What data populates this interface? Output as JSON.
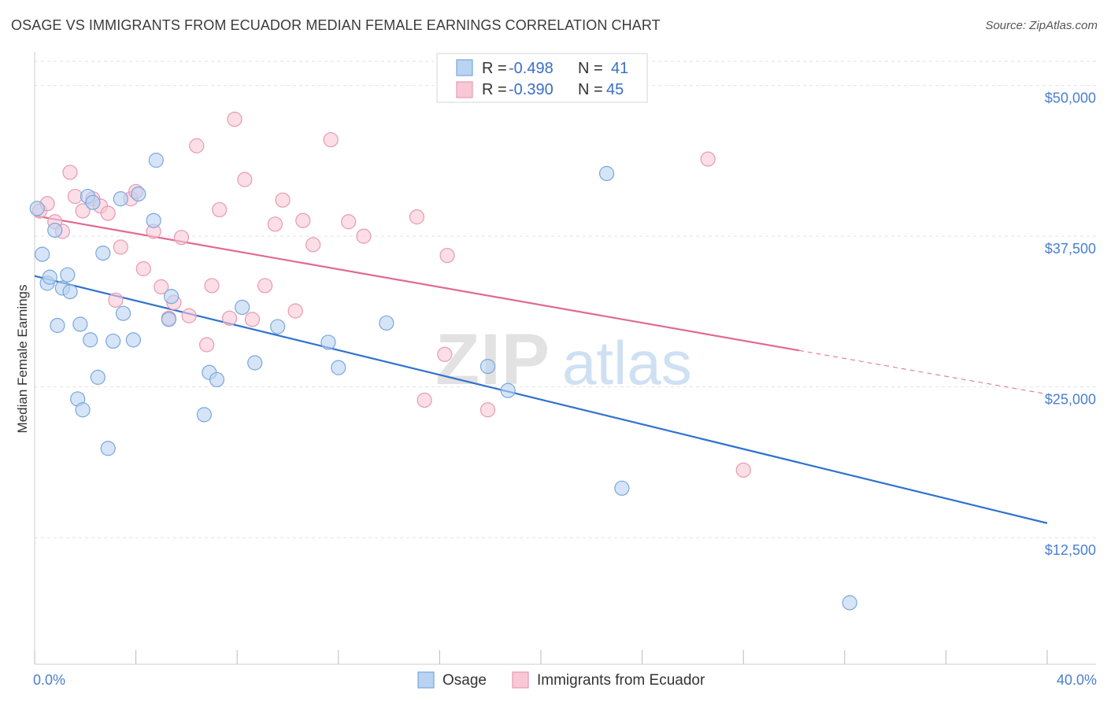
{
  "title": "OSAGE VS IMMIGRANTS FROM ECUADOR MEDIAN FEMALE EARNINGS CORRELATION CHART",
  "source": "Source: ZipAtlas.com",
  "watermark": {
    "zip": "ZIP",
    "atlas": "atlas"
  },
  "colors": {
    "osage_fill": "#b9d3f2",
    "osage_stroke": "#7aa6dc",
    "osage_line": "#2f72cf",
    "ecuador_fill": "#f8c8d6",
    "ecuador_stroke": "#e79ab3",
    "ecuador_line": "#e06a91",
    "tick_label": "#4a7fd0",
    "grid": "#e2e2e2"
  },
  "legend": {
    "rows": [
      {
        "r_label": "R =",
        "r_value": "-0.498",
        "n_label": "N =",
        "n_value": "41"
      },
      {
        "r_label": "R =",
        "r_value": "-0.390",
        "n_label": "N =",
        "n_value": "45"
      }
    ]
  },
  "chart_data": {
    "type": "scatter",
    "title": "OSAGE VS IMMIGRANTS FROM ECUADOR MEDIAN FEMALE EARNINGS CORRELATION CHART",
    "xlabel": "",
    "ylabel": "Median Female Earnings",
    "xlim": [
      0,
      40
    ],
    "ylim": [
      2000,
      52000
    ],
    "x_tick_labels": [
      "0.0%",
      "40.0%"
    ],
    "y_ticks": [
      12500,
      25000,
      37500,
      50000
    ],
    "y_tick_labels": [
      "$12,500",
      "$25,000",
      "$37,500",
      "$50,000"
    ],
    "grid": "horizontal dashed",
    "legend_placement": "top-center",
    "series": [
      {
        "name": "Osage",
        "r": -0.498,
        "n": 41,
        "trend": {
          "x0": 0,
          "y0": 34200,
          "x1": 40,
          "y1": 13700,
          "dashed_from": null
        },
        "points": [
          [
            0.1,
            39800
          ],
          [
            0.3,
            36000
          ],
          [
            0.5,
            33600
          ],
          [
            0.6,
            34100
          ],
          [
            0.8,
            38000
          ],
          [
            0.9,
            30100
          ],
          [
            1.1,
            33200
          ],
          [
            1.3,
            34300
          ],
          [
            1.4,
            32900
          ],
          [
            1.7,
            24000
          ],
          [
            1.8,
            30200
          ],
          [
            1.9,
            23100
          ],
          [
            2.1,
            40800
          ],
          [
            2.2,
            28900
          ],
          [
            2.3,
            40300
          ],
          [
            2.5,
            25800
          ],
          [
            2.7,
            36100
          ],
          [
            2.9,
            19900
          ],
          [
            3.1,
            28800
          ],
          [
            3.4,
            40600
          ],
          [
            3.5,
            31100
          ],
          [
            3.9,
            28900
          ],
          [
            4.1,
            41000
          ],
          [
            4.7,
            38800
          ],
          [
            4.8,
            43800
          ],
          [
            5.3,
            30600
          ],
          [
            5.4,
            32500
          ],
          [
            6.7,
            22700
          ],
          [
            6.9,
            26200
          ],
          [
            7.2,
            25600
          ],
          [
            8.2,
            31600
          ],
          [
            8.7,
            27000
          ],
          [
            9.6,
            30000
          ],
          [
            11.6,
            28700
          ],
          [
            12.0,
            26600
          ],
          [
            13.9,
            30300
          ],
          [
            17.9,
            26700
          ],
          [
            18.7,
            24700
          ],
          [
            22.6,
            42700
          ],
          [
            23.2,
            16600
          ],
          [
            32.2,
            7100
          ]
        ]
      },
      {
        "name": "Immigrants from Ecuador",
        "r": -0.39,
        "n": 45,
        "trend": {
          "x0": 0,
          "y0": 39200,
          "x1": 40,
          "y1": 24400,
          "dashed_from": 30.2
        },
        "points": [
          [
            0.2,
            39600
          ],
          [
            0.5,
            40200
          ],
          [
            0.8,
            38700
          ],
          [
            1.1,
            37900
          ],
          [
            1.4,
            42800
          ],
          [
            1.6,
            40800
          ],
          [
            1.9,
            39600
          ],
          [
            2.3,
            40600
          ],
          [
            2.6,
            40000
          ],
          [
            2.9,
            39400
          ],
          [
            3.2,
            32200
          ],
          [
            3.4,
            36600
          ],
          [
            3.8,
            40600
          ],
          [
            4.0,
            41200
          ],
          [
            4.3,
            34800
          ],
          [
            4.7,
            37900
          ],
          [
            5.0,
            33300
          ],
          [
            5.3,
            30700
          ],
          [
            5.5,
            32000
          ],
          [
            5.8,
            37400
          ],
          [
            6.1,
            30900
          ],
          [
            6.4,
            45000
          ],
          [
            6.8,
            28500
          ],
          [
            7.0,
            33400
          ],
          [
            7.3,
            39700
          ],
          [
            7.7,
            30700
          ],
          [
            7.9,
            47200
          ],
          [
            8.3,
            42200
          ],
          [
            8.6,
            30600
          ],
          [
            9.1,
            33400
          ],
          [
            9.5,
            38500
          ],
          [
            9.8,
            40500
          ],
          [
            10.3,
            31300
          ],
          [
            10.6,
            38800
          ],
          [
            11.0,
            36800
          ],
          [
            11.7,
            45500
          ],
          [
            12.4,
            38700
          ],
          [
            13.0,
            37500
          ],
          [
            15.1,
            39100
          ],
          [
            15.4,
            23900
          ],
          [
            16.2,
            27700
          ],
          [
            16.3,
            35900
          ],
          [
            17.9,
            23100
          ],
          [
            26.6,
            43900
          ],
          [
            28.0,
            18100
          ]
        ]
      }
    ]
  }
}
